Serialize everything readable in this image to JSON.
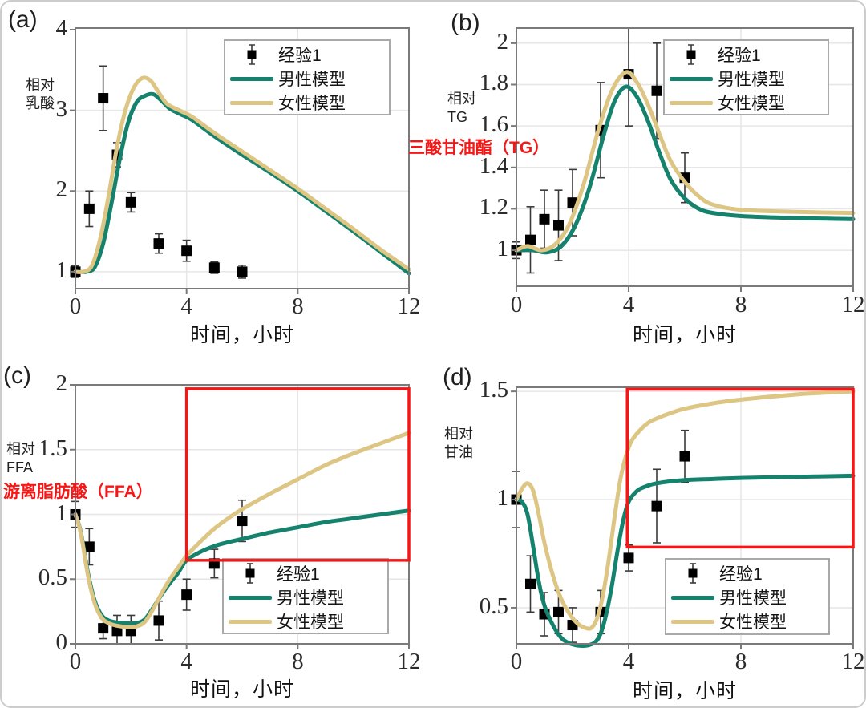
{
  "figure_title": "",
  "colors": {
    "male_line": "#14826C",
    "female_line": "#DDC583",
    "marker": "#000000",
    "errorbar": "#3a3a3a",
    "annotation_red": "#F71616",
    "grid": "#e6e6e6",
    "frame": "#7a7a7a",
    "tick_text": "#2b2b2b"
  },
  "annotations": [
    {
      "text": "三酸甘油酯（TG）",
      "color": "#F71616",
      "target_panel": "b"
    },
    {
      "text": "游离脂肪酸（FFA）",
      "color": "#F71616",
      "target_panel": "c"
    }
  ],
  "chart_data": [
    {
      "type": "line",
      "tag": "(a)",
      "ylabel_lines": [
        "相对",
        "乳酸"
      ],
      "xlabel": "时间，小时",
      "xlim": [
        0,
        12
      ],
      "ylim": [
        0.79,
        4.02
      ],
      "xticks": [
        0,
        4,
        8,
        12
      ],
      "xtick_labels": [
        "0",
        "4",
        "8",
        "12"
      ],
      "yticks": [
        1,
        2,
        3,
        4
      ],
      "ytick_labels": [
        "1",
        "2",
        "3",
        "4"
      ],
      "grid": true,
      "legend_position": "top-right",
      "red_box": null,
      "series": [
        {
          "name": "经验1",
          "kind": "scatter-errorbar",
          "color": "#000000",
          "x": [
            0,
            0.5,
            1,
            1.5,
            2,
            3,
            4,
            5,
            6
          ],
          "y": [
            1.0,
            1.78,
            3.15,
            2.45,
            1.86,
            1.35,
            1.26,
            1.05,
            1.0
          ],
          "yerr": [
            0.07,
            0.22,
            0.4,
            0.15,
            0.12,
            0.12,
            0.13,
            0.07,
            0.08
          ]
        },
        {
          "name": "男性模型",
          "kind": "line",
          "color": "#14826C",
          "points": [
            [
              0,
              1.0
            ],
            [
              0.4,
              1.0
            ],
            [
              0.7,
              1.06
            ],
            [
              1.0,
              1.35
            ],
            [
              1.3,
              1.85
            ],
            [
              1.6,
              2.4
            ],
            [
              1.9,
              2.85
            ],
            [
              2.2,
              3.1
            ],
            [
              2.5,
              3.18
            ],
            [
              2.8,
              3.2
            ],
            [
              3.1,
              3.12
            ],
            [
              3.4,
              3.02
            ],
            [
              3.8,
              2.95
            ],
            [
              4.2,
              2.88
            ],
            [
              5,
              2.68
            ],
            [
              6,
              2.45
            ],
            [
              7,
              2.23
            ],
            [
              8,
              2.0
            ],
            [
              9,
              1.75
            ],
            [
              10,
              1.5
            ],
            [
              11,
              1.24
            ],
            [
              12,
              0.98
            ]
          ]
        },
        {
          "name": "女性模型",
          "kind": "line",
          "color": "#DDC583",
          "points": [
            [
              0,
              1.0
            ],
            [
              0.3,
              1.0
            ],
            [
              0.6,
              1.08
            ],
            [
              0.9,
              1.42
            ],
            [
              1.2,
              1.95
            ],
            [
              1.5,
              2.55
            ],
            [
              1.8,
              3.0
            ],
            [
              2.1,
              3.28
            ],
            [
              2.4,
              3.4
            ],
            [
              2.7,
              3.37
            ],
            [
              3.0,
              3.22
            ],
            [
              3.3,
              3.08
            ],
            [
              3.8,
              2.99
            ],
            [
              4.2,
              2.92
            ],
            [
              5,
              2.72
            ],
            [
              6,
              2.49
            ],
            [
              7,
              2.26
            ],
            [
              8,
              2.03
            ],
            [
              9,
              1.78
            ],
            [
              10,
              1.53
            ],
            [
              11,
              1.27
            ],
            [
              12,
              1.03
            ]
          ]
        }
      ]
    },
    {
      "type": "line",
      "tag": "(b)",
      "ylabel_lines": [
        "相对",
        "TG"
      ],
      "xlabel": "时间，小时",
      "xlim": [
        0,
        12
      ],
      "ylim": [
        0.826,
        2.073
      ],
      "xticks": [
        0,
        4,
        8,
        12
      ],
      "xtick_labels": [
        "0",
        "4",
        "8",
        "12"
      ],
      "yticks": [
        1,
        1.2,
        1.4,
        1.6,
        1.8,
        2
      ],
      "ytick_labels": [
        "1",
        "1.2",
        "1.4",
        "1.6",
        "1.8",
        "2"
      ],
      "grid": true,
      "legend_position": "top-right",
      "red_box": null,
      "series": [
        {
          "name": "经验1",
          "kind": "scatter-errorbar",
          "color": "#000000",
          "x": [
            0,
            0.5,
            1,
            1.5,
            2,
            3,
            4,
            5,
            6
          ],
          "y": [
            1.0,
            1.05,
            1.15,
            1.12,
            1.23,
            1.58,
            1.85,
            1.77,
            1.35
          ],
          "yerr": [
            0.04,
            0.16,
            0.14,
            0.17,
            0.16,
            0.23,
            0.25,
            0.23,
            0.12
          ]
        },
        {
          "name": "男性模型",
          "kind": "line",
          "color": "#14826C",
          "points": [
            [
              0,
              1.0
            ],
            [
              0.6,
              1.0
            ],
            [
              1.1,
              0.99
            ],
            [
              1.6,
              1.02
            ],
            [
              2.1,
              1.12
            ],
            [
              2.6,
              1.3
            ],
            [
              3.1,
              1.55
            ],
            [
              3.5,
              1.72
            ],
            [
              3.9,
              1.79
            ],
            [
              4.3,
              1.74
            ],
            [
              4.7,
              1.62
            ],
            [
              5.1,
              1.47
            ],
            [
              5.5,
              1.34
            ],
            [
              6,
              1.25
            ],
            [
              6.5,
              1.2
            ],
            [
              7,
              1.18
            ],
            [
              8,
              1.165
            ],
            [
              10,
              1.155
            ],
            [
              12,
              1.15
            ]
          ]
        },
        {
          "name": "女性模型",
          "kind": "line",
          "color": "#DDC583",
          "points": [
            [
              0,
              1.0
            ],
            [
              0.4,
              1.02
            ],
            [
              0.9,
              1.0
            ],
            [
              1.4,
              1.03
            ],
            [
              1.9,
              1.13
            ],
            [
              2.4,
              1.32
            ],
            [
              2.9,
              1.57
            ],
            [
              3.4,
              1.77
            ],
            [
              3.9,
              1.86
            ],
            [
              4.3,
              1.81
            ],
            [
              4.7,
              1.7
            ],
            [
              5.1,
              1.56
            ],
            [
              5.5,
              1.43
            ],
            [
              6,
              1.33
            ],
            [
              6.5,
              1.26
            ],
            [
              7,
              1.22
            ],
            [
              8,
              1.195
            ],
            [
              10,
              1.185
            ],
            [
              12,
              1.18
            ]
          ]
        }
      ]
    },
    {
      "type": "line",
      "tag": "(c)",
      "ylabel_lines": [
        "相对",
        "FFA"
      ],
      "xlabel": "时间，小时",
      "xlim": [
        0,
        12
      ],
      "ylim": [
        0,
        2.0
      ],
      "xticks": [
        0,
        4,
        8,
        12
      ],
      "xtick_labels": [
        "0",
        "4",
        "8",
        "12"
      ],
      "yticks": [
        0,
        0.5,
        1,
        1.5,
        2
      ],
      "ytick_labels": [
        "0",
        "0.5",
        "1",
        "1.5",
        "2"
      ],
      "grid": true,
      "legend_position": "bottom-right",
      "red_box": {
        "x0": 4,
        "x1": 12,
        "y0": 0.645,
        "y1": 1.97
      },
      "series": [
        {
          "name": "经验1",
          "kind": "scatter-errorbar",
          "color": "#000000",
          "x": [
            0,
            0.5,
            1,
            1.5,
            2,
            3,
            4,
            5,
            6
          ],
          "y": [
            1.0,
            0.75,
            0.12,
            0.1,
            0.1,
            0.18,
            0.38,
            0.62,
            0.95
          ],
          "yerr": [
            0.1,
            0.14,
            0.08,
            0.12,
            0.12,
            0.15,
            0.12,
            0.11,
            0.16
          ]
        },
        {
          "name": "男性模型",
          "kind": "line",
          "color": "#14826C",
          "points": [
            [
              0,
              1.0
            ],
            [
              0.2,
              0.86
            ],
            [
              0.45,
              0.55
            ],
            [
              0.7,
              0.33
            ],
            [
              0.95,
              0.22
            ],
            [
              1.2,
              0.18
            ],
            [
              1.5,
              0.165
            ],
            [
              1.9,
              0.16
            ],
            [
              2.2,
              0.16
            ],
            [
              2.5,
              0.19
            ],
            [
              2.8,
              0.28
            ],
            [
              3.1,
              0.38
            ],
            [
              3.4,
              0.47
            ],
            [
              3.7,
              0.55
            ],
            [
              4.0,
              0.645
            ],
            [
              4.5,
              0.71
            ],
            [
              5,
              0.755
            ],
            [
              5.5,
              0.785
            ],
            [
              6,
              0.81
            ],
            [
              7,
              0.86
            ],
            [
              8,
              0.9
            ],
            [
              9,
              0.94
            ],
            [
              10,
              0.97
            ],
            [
              11,
              1.0
            ],
            [
              12,
              1.03
            ]
          ]
        },
        {
          "name": "女性模型",
          "kind": "line",
          "color": "#DDC583",
          "points": [
            [
              0,
              1.0
            ],
            [
              0.2,
              0.85
            ],
            [
              0.45,
              0.53
            ],
            [
              0.7,
              0.31
            ],
            [
              0.95,
              0.2
            ],
            [
              1.2,
              0.16
            ],
            [
              1.5,
              0.14
            ],
            [
              1.9,
              0.13
            ],
            [
              2.2,
              0.135
            ],
            [
              2.5,
              0.17
            ],
            [
              2.8,
              0.27
            ],
            [
              3.1,
              0.39
            ],
            [
              3.4,
              0.5
            ],
            [
              3.7,
              0.59
            ],
            [
              4.0,
              0.68
            ],
            [
              4.5,
              0.79
            ],
            [
              5,
              0.89
            ],
            [
              5.5,
              0.97
            ],
            [
              6,
              1.04
            ],
            [
              7,
              1.16
            ],
            [
              8,
              1.27
            ],
            [
              9,
              1.38
            ],
            [
              10,
              1.47
            ],
            [
              11,
              1.55
            ],
            [
              12,
              1.63
            ]
          ]
        }
      ]
    },
    {
      "type": "line",
      "tag": "(d)",
      "ylabel_lines": [
        "相对",
        "甘油"
      ],
      "xlabel": "时间，小时",
      "xlim": [
        0,
        12
      ],
      "ylim": [
        0.333,
        1.519
      ],
      "xticks": [
        0,
        4,
        8,
        12
      ],
      "xtick_labels": [
        "0",
        "4",
        "8",
        "12"
      ],
      "yticks": [
        0.5,
        1,
        1.5
      ],
      "ytick_labels": [
        "0.5",
        "1",
        "1.5"
      ],
      "grid": true,
      "legend_position": "bottom-right",
      "red_box": {
        "x0": 3.95,
        "x1": 12,
        "y0": 0.78,
        "y1": 1.51
      },
      "series": [
        {
          "name": "经验1",
          "kind": "scatter-errorbar",
          "color": "#000000",
          "x": [
            0,
            0.5,
            1,
            1.5,
            2,
            3,
            4,
            5,
            6
          ],
          "y": [
            1.0,
            0.61,
            0.47,
            0.48,
            0.42,
            0.48,
            0.73,
            0.97,
            1.2
          ],
          "yerr": [
            0.13,
            0.13,
            0.1,
            0.1,
            0.08,
            0.1,
            0.06,
            0.17,
            0.12
          ]
        },
        {
          "name": "男性模型",
          "kind": "line",
          "color": "#14826C",
          "points": [
            [
              0,
              1.0
            ],
            [
              0.2,
              0.99
            ],
            [
              0.4,
              0.93
            ],
            [
              0.6,
              0.78
            ],
            [
              0.8,
              0.62
            ],
            [
              1.0,
              0.51
            ],
            [
              1.3,
              0.42
            ],
            [
              1.6,
              0.36
            ],
            [
              1.9,
              0.335
            ],
            [
              2.2,
              0.325
            ],
            [
              2.5,
              0.325
            ],
            [
              2.8,
              0.34
            ],
            [
              3.0,
              0.38
            ],
            [
              3.2,
              0.47
            ],
            [
              3.4,
              0.6
            ],
            [
              3.6,
              0.76
            ],
            [
              3.8,
              0.9
            ],
            [
              4.0,
              0.99
            ],
            [
              4.3,
              1.04
            ],
            [
              4.6,
              1.06
            ],
            [
              5,
              1.075
            ],
            [
              6,
              1.09
            ],
            [
              7,
              1.095
            ],
            [
              8,
              1.1
            ],
            [
              10,
              1.105
            ],
            [
              12,
              1.11
            ]
          ]
        },
        {
          "name": "女性模型",
          "kind": "line",
          "color": "#DDC583",
          "points": [
            [
              0,
              1.0
            ],
            [
              0.2,
              1.05
            ],
            [
              0.4,
              1.075
            ],
            [
              0.6,
              1.04
            ],
            [
              0.8,
              0.93
            ],
            [
              1.0,
              0.8
            ],
            [
              1.3,
              0.65
            ],
            [
              1.6,
              0.54
            ],
            [
              1.9,
              0.47
            ],
            [
              2.2,
              0.425
            ],
            [
              2.5,
              0.405
            ],
            [
              2.7,
              0.41
            ],
            [
              2.9,
              0.46
            ],
            [
              3.1,
              0.57
            ],
            [
              3.3,
              0.73
            ],
            [
              3.5,
              0.92
            ],
            [
              3.7,
              1.09
            ],
            [
              3.9,
              1.2
            ],
            [
              4.1,
              1.27
            ],
            [
              4.4,
              1.32
            ],
            [
              4.7,
              1.355
            ],
            [
              5,
              1.375
            ],
            [
              5.5,
              1.4
            ],
            [
              6,
              1.42
            ],
            [
              7,
              1.445
            ],
            [
              8,
              1.462
            ],
            [
              9,
              1.475
            ],
            [
              10,
              1.486
            ],
            [
              11,
              1.494
            ],
            [
              12,
              1.5
            ]
          ]
        }
      ]
    }
  ]
}
